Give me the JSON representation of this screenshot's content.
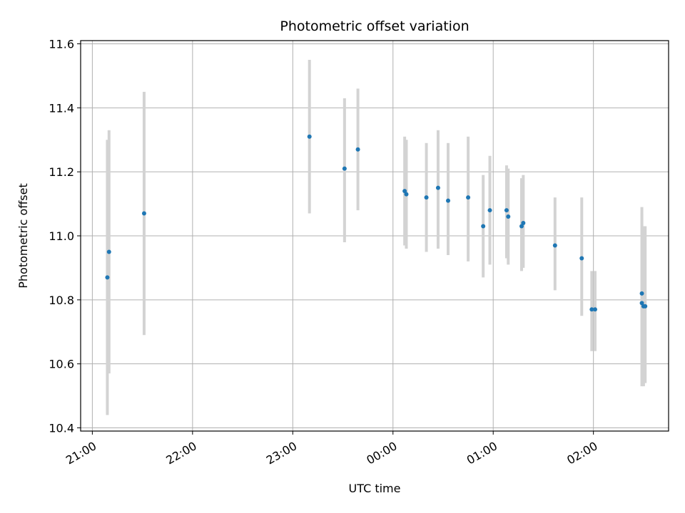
{
  "chart_data": {
    "type": "scatter",
    "title": "Photometric offset variation",
    "xlabel": "UTC time",
    "ylabel": "Photometric offset",
    "grid": true,
    "x_axis": {
      "kind": "time",
      "range": [
        "20:53",
        "02:45"
      ],
      "ticks": [
        "21:00",
        "22:00",
        "23:00",
        "00:00",
        "01:00",
        "02:00"
      ]
    },
    "ylim": [
      10.39,
      11.61
    ],
    "y_ticks": [
      10.4,
      10.6,
      10.8,
      11.0,
      11.2,
      11.4,
      11.6
    ],
    "colors": {
      "marker": "#1f77b4",
      "errorbar": "#d3d3d3"
    },
    "series": [
      {
        "points": [
          {
            "t": "21:09",
            "y": 10.87,
            "lo": 10.44,
            "hi": 11.3
          },
          {
            "t": "21:10",
            "y": 10.95,
            "lo": 10.57,
            "hi": 11.33
          },
          {
            "t": "21:31",
            "y": 11.07,
            "lo": 10.69,
            "hi": 11.45
          },
          {
            "t": "23:10",
            "y": 11.31,
            "lo": 11.07,
            "hi": 11.55
          },
          {
            "t": "23:31",
            "y": 11.21,
            "lo": 10.98,
            "hi": 11.43
          },
          {
            "t": "23:39",
            "y": 11.27,
            "lo": 11.08,
            "hi": 11.46
          },
          {
            "t": "00:07",
            "y": 11.14,
            "lo": 10.97,
            "hi": 11.31
          },
          {
            "t": "00:08",
            "y": 11.13,
            "lo": 10.96,
            "hi": 11.3
          },
          {
            "t": "00:20",
            "y": 11.12,
            "lo": 10.95,
            "hi": 11.29
          },
          {
            "t": "00:27",
            "y": 11.15,
            "lo": 10.96,
            "hi": 11.33
          },
          {
            "t": "00:33",
            "y": 11.11,
            "lo": 10.94,
            "hi": 11.29
          },
          {
            "t": "00:45",
            "y": 11.12,
            "lo": 10.92,
            "hi": 11.31
          },
          {
            "t": "00:54",
            "y": 11.03,
            "lo": 10.87,
            "hi": 11.19
          },
          {
            "t": "00:58",
            "y": 11.08,
            "lo": 10.91,
            "hi": 11.25
          },
          {
            "t": "01:08",
            "y": 11.08,
            "lo": 10.93,
            "hi": 11.22
          },
          {
            "t": "01:09",
            "y": 11.06,
            "lo": 10.91,
            "hi": 11.21
          },
          {
            "t": "01:17",
            "y": 11.03,
            "lo": 10.89,
            "hi": 11.18
          },
          {
            "t": "01:18",
            "y": 11.04,
            "lo": 10.9,
            "hi": 11.19
          },
          {
            "t": "01:37",
            "y": 10.97,
            "lo": 10.83,
            "hi": 11.12
          },
          {
            "t": "01:53",
            "y": 10.93,
            "lo": 10.75,
            "hi": 11.12
          },
          {
            "t": "01:59",
            "y": 10.77,
            "lo": 10.64,
            "hi": 10.89
          },
          {
            "t": "02:01",
            "y": 10.77,
            "lo": 10.64,
            "hi": 10.89
          },
          {
            "t": "02:29",
            "y": 10.79,
            "lo": 10.53,
            "hi": 11.09
          },
          {
            "t": "02:29",
            "y": 10.82,
            "lo": 10.55,
            "hi": 11.07
          },
          {
            "t": "02:30",
            "y": 10.78,
            "lo": 10.53,
            "hi": 11.03
          },
          {
            "t": "02:31",
            "y": 10.78,
            "lo": 10.54,
            "hi": 11.03
          }
        ]
      }
    ]
  }
}
